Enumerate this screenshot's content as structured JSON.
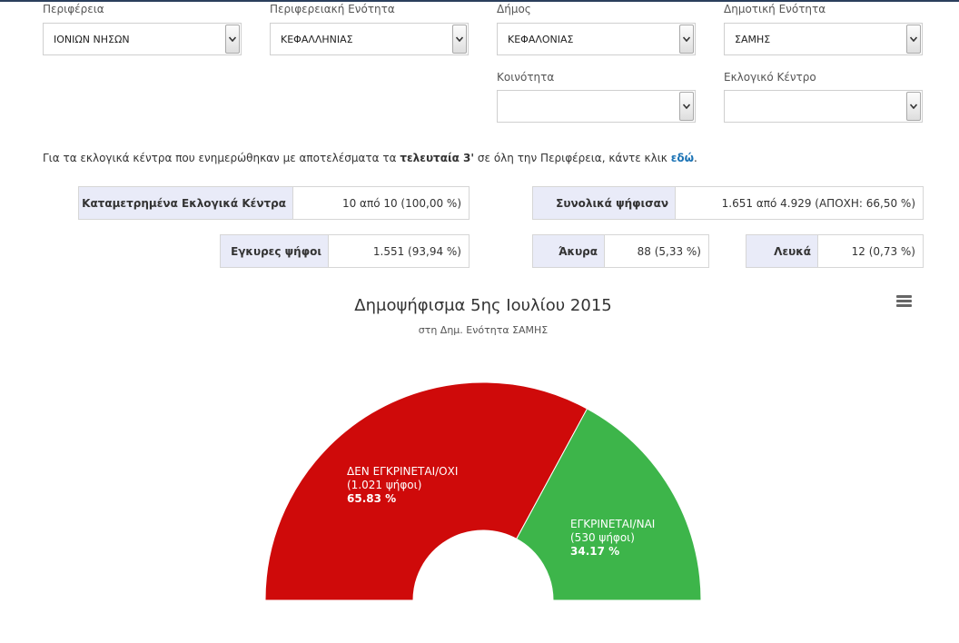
{
  "filters": {
    "periferia": {
      "label": "Περιφέρεια",
      "value": "ΙΟΝΙΩΝ ΝΗΣΩΝ"
    },
    "enotita": {
      "label": "Περιφερειακή Ενότητα",
      "value": "ΚΕΦΑΛΛΗΝΙΑΣ"
    },
    "dimos": {
      "label": "Δήμος",
      "value": "ΚΕΦΑΛΟΝΙΑΣ"
    },
    "dim_enotita": {
      "label": "Δημοτική Ενότητα",
      "value": "ΣΑΜΗΣ"
    },
    "koinotita": {
      "label": "Κοινότητα",
      "value": ""
    },
    "eklogiko_kentro": {
      "label": "Εκλογικό Κέντρο",
      "value": ""
    }
  },
  "note": {
    "text_before": "Για τα εκλογικά κέντρα που ενημερώθηκαν με αποτελέσματα τα",
    "bold": "τελευταία 3'",
    "text_after": "σε όλη την Περιφέρεια, κάντε κλικ",
    "link": "εδώ",
    "end": "."
  },
  "stats": {
    "counted_centers": {
      "label": "Καταμετρημένα Εκλογικά Κέντρα",
      "value": "10 από 10   (100,00 %)"
    },
    "total_voted": {
      "label": "Συνολικά ψήφισαν",
      "value": "1.651 από 4.929   (ΑΠΟΧΗ: 66,50 %)"
    },
    "valid": {
      "label": "Εγκυρες ψήφοι",
      "value": "1.551   (93,94 %)"
    },
    "invalid": {
      "label": "Άκυρα",
      "value": "88   (5,33 %)"
    },
    "blank": {
      "label": "Λευκά",
      "value": "12   (0,73 %)"
    }
  },
  "chart": {
    "menu_icon": "hamburger-menu-icon"
  },
  "chart_data": {
    "type": "pie",
    "variant": "semi-donut",
    "title": "Δημοψήφισμα 5ης Ιουλίου 2015",
    "subtitle": "στη Δημ. Ενότητα ΣΑΜΗΣ",
    "slices": [
      {
        "name": "ΔΕΝ ΕΓΚΡΙΝΕΤΑΙ/ΟΧΙ",
        "votes_text": "(1.021 ψήφοι)",
        "percent_text": "65.83 %",
        "value": 65.83,
        "color": "#cf0a0a"
      },
      {
        "name": "ΕΓΚΡΙΝΕΤΑΙ/ΝΑΙ",
        "votes_text": "(530 ψήφοι)",
        "percent_text": "34.17 %",
        "value": 34.17,
        "color": "#3db54a"
      }
    ]
  }
}
